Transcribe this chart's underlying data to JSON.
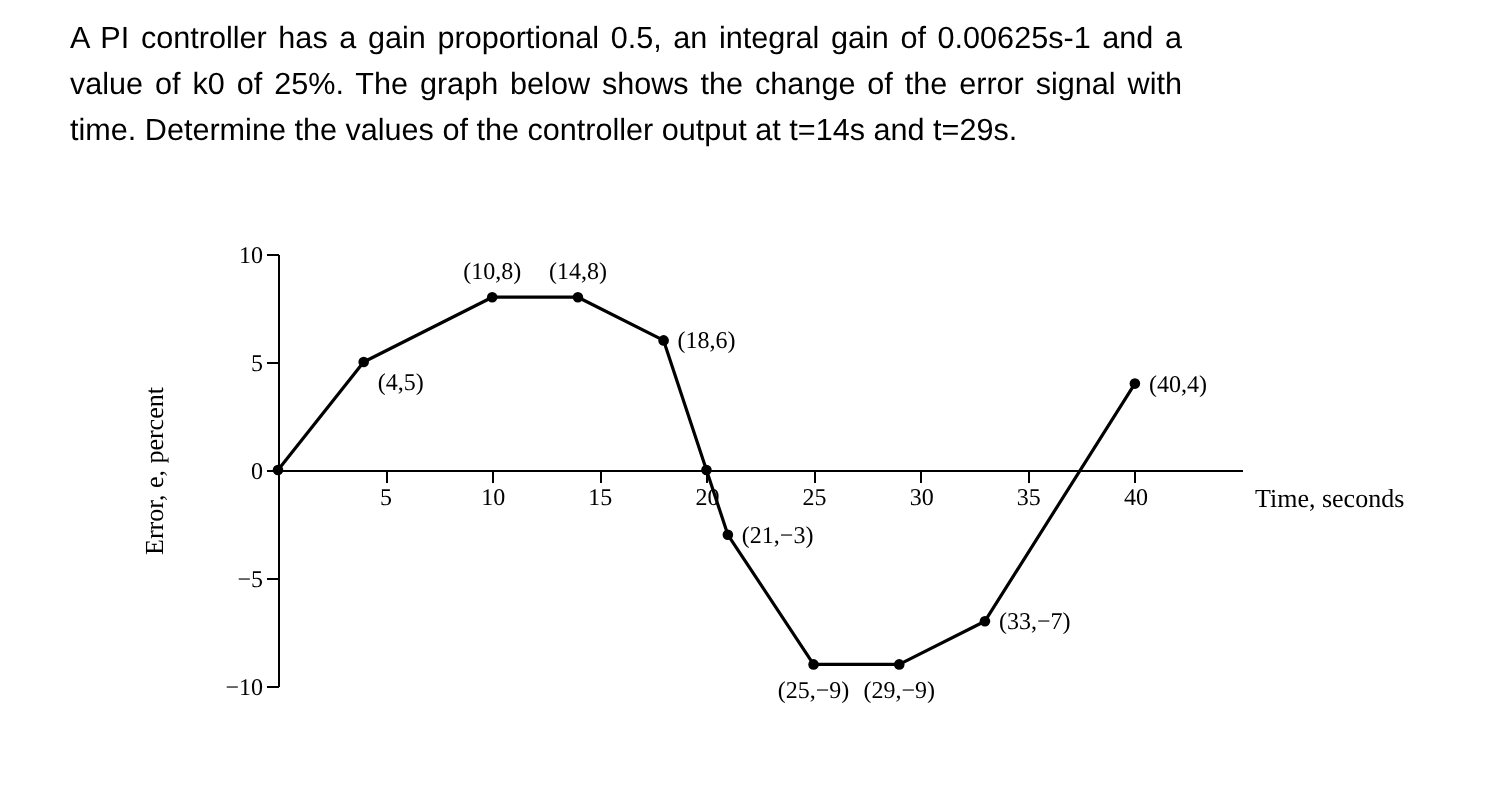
{
  "chart_data": {
    "type": "line",
    "title": "A PI controller has a gain proportional 0.5, an integral gain of 0.00625s-1 and a value of k0 of 25%. The graph below shows the change of the error signal with time. Determine the values of the controller output at t=14s and t=29s.",
    "xlabel": "Time, seconds",
    "ylabel": "Error, e, percent",
    "x": [
      0,
      4,
      10,
      14,
      18,
      20,
      21,
      25,
      29,
      33,
      40
    ],
    "series": [
      {
        "color": "#000000",
        "values": [
          0,
          5,
          8,
          8,
          6,
          0,
          -3,
          -9,
          -9,
          -7,
          4
        ]
      }
    ],
    "xlim": [
      0,
      45
    ],
    "xticks": [
      5,
      10,
      15,
      20,
      25,
      30,
      35,
      40
    ],
    "ylim": [
      -10,
      10
    ],
    "yticks": [
      -10,
      -5,
      0,
      5,
      10
    ],
    "grid": false,
    "marker": "circle",
    "line_style": "solid",
    "annotations": [
      {
        "text": "(4,5)",
        "x": 4,
        "y": 5
      },
      {
        "text": "(10,8)",
        "x": 10,
        "y": 8
      },
      {
        "text": "(14,8)",
        "x": 14,
        "y": 8
      },
      {
        "text": "(18,6)",
        "x": 18,
        "y": 6
      },
      {
        "text": "(21,−3)",
        "x": 21,
        "y": -3
      },
      {
        "text": "(25,−9)",
        "x": 25,
        "y": -9
      },
      {
        "text": "(29,−9)",
        "x": 29,
        "y": -9
      },
      {
        "text": "(33,−7)",
        "x": 33,
        "y": -7
      },
      {
        "text": "(40,4)",
        "x": 40,
        "y": 4
      }
    ]
  }
}
